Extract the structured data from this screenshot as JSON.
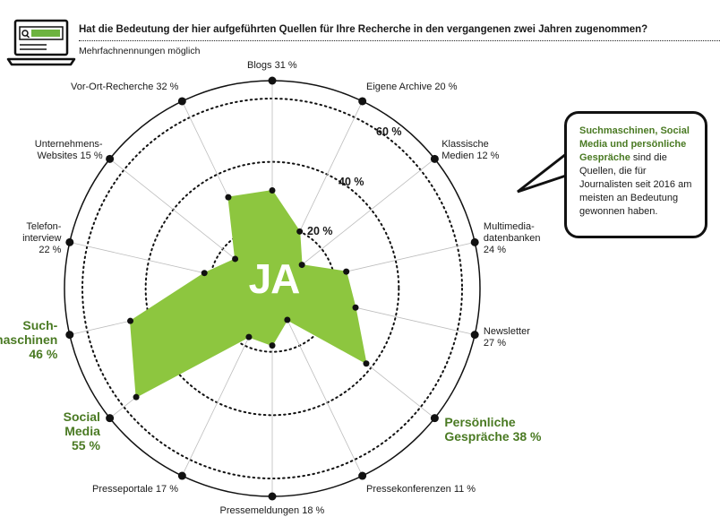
{
  "header": {
    "question": "Hat die Bedeutung der hier aufgeführten Quellen für Ihre Recherche in den vergangenen zwei Jahren zugenommen?",
    "note": "Mehrfachnennungen möglich",
    "icon": "laptop-search-icon"
  },
  "center_label": "JA",
  "callout": {
    "highlight": "Suchmaschinen, Social Media und persönliche Gespräche",
    "text": " sind die Quellen, die für Journalisten seit 2016 am meisten an Bedeutung gewonnen haben."
  },
  "colors": {
    "fill": "#8dc63f",
    "highlight_text": "#4a7a23",
    "ink": "#111111"
  },
  "chart_data": {
    "type": "radar",
    "rlim": [
      0,
      60
    ],
    "ring_ticks": [
      "20 %",
      "40 %",
      "60 %"
    ],
    "categories": [
      {
        "name": "Blogs",
        "value": 31,
        "label": [
          "Blogs 31 %"
        ]
      },
      {
        "name": "Eigene Archive",
        "value": 20,
        "label": [
          "Eigene Archive 20 %"
        ]
      },
      {
        "name": "Klassische Medien",
        "value": 12,
        "label": [
          "Klassische",
          "Medien 12 %"
        ]
      },
      {
        "name": "Multimedia-datenbanken",
        "value": 24,
        "label": [
          "Multimedia-",
          "datenbanken",
          "24 %"
        ]
      },
      {
        "name": "Newsletter",
        "value": 27,
        "label": [
          "Newsletter",
          "27 %"
        ]
      },
      {
        "name": "Persönliche Gespräche",
        "value": 38,
        "label": [
          "Persönliche",
          "Gespräche 38 %"
        ],
        "highlight": true
      },
      {
        "name": "Pressekonferenzen",
        "value": 11,
        "label": [
          "Pressekonferenzen 11 %"
        ]
      },
      {
        "name": "Pressemeldungen",
        "value": 18,
        "label": [
          "Pressemeldungen 18 %"
        ]
      },
      {
        "name": "Presseportale",
        "value": 17,
        "label": [
          "Presseportale 17 %"
        ]
      },
      {
        "name": "Social Media",
        "value": 55,
        "label": [
          "Social",
          "Media",
          "55 %"
        ],
        "highlight": true
      },
      {
        "name": "Suchmaschinen",
        "value": 46,
        "label": [
          "Such-",
          "maschinen",
          "46 %"
        ],
        "highlight": true
      },
      {
        "name": "Telefoninterview",
        "value": 22,
        "label": [
          "Telefon-",
          "interview",
          "22 %"
        ]
      },
      {
        "name": "Unternehmens-Websites",
        "value": 15,
        "label": [
          "Unternehmens-",
          "Websites 15 %"
        ]
      },
      {
        "name": "Vor-Ort-Recherche",
        "value": 32,
        "label": [
          "Vor-Ort-Recherche 32 %"
        ]
      }
    ]
  }
}
